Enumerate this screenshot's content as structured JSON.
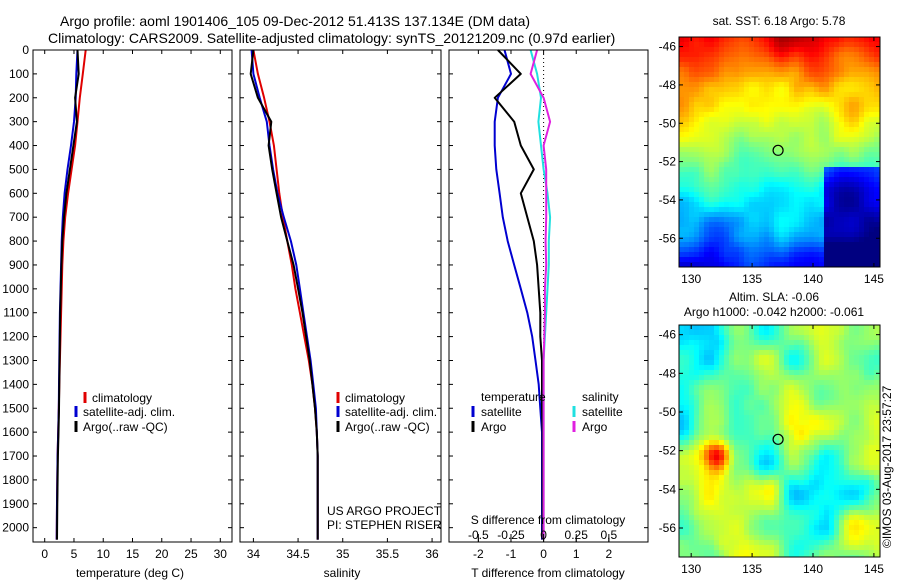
{
  "title": {
    "line1": "Argo profile: aoml 1901406_105 09-Dec-2012 51.413S 137.134E (DM data)",
    "line2": "Climatology: CARS2009. Satellite-adjusted climatology: synTS_20121209.nc (0.97d earlier)"
  },
  "colors": {
    "climatology": "#e00000",
    "satellite": "#0000d0",
    "argo": "#000000",
    "argo_salinity_diff": "#e020e0",
    "satellite_salinity_diff": "#20e0e0"
  },
  "footer": {
    "project": "US ARGO PROJECT",
    "pi": "PI: STEPHEN RISER",
    "timestamp": "©IMOS 03-Aug-2017 23:57:27"
  },
  "chart_data": [
    {
      "type": "line",
      "name": "temperature-profile",
      "xlabel": "temperature (deg C)",
      "ylabel": "",
      "xlim": [
        -2,
        32
      ],
      "ylim": [
        2060,
        0
      ],
      "x_ticks": [
        0,
        5,
        10,
        15,
        20,
        25,
        30
      ],
      "x_tick_labels": [
        "0",
        "5",
        "10",
        "15",
        "20",
        "25",
        "30"
      ],
      "y_ticks": [
        0,
        100,
        200,
        300,
        400,
        500,
        600,
        700,
        800,
        900,
        1000,
        1100,
        1200,
        1300,
        1400,
        1500,
        1600,
        1700,
        1800,
        1900,
        2000
      ],
      "y_tick_labels": [
        "0",
        "100",
        "200",
        "300",
        "400",
        "500",
        "600",
        "700",
        "800",
        "900",
        "1000",
        "1100",
        "1200",
        "1300",
        "1400",
        "1500",
        "1600",
        "1700",
        "1800",
        "1900",
        "2000"
      ],
      "legend": [
        "climatology",
        "satellite-adj. clim.",
        "Argo(..raw -QC)"
      ],
      "series": [
        {
          "name": "climatology",
          "color": "#e00000",
          "x": [
            7.0,
            6.5,
            6.0,
            5.6,
            5.2,
            4.6,
            4.0,
            3.5,
            3.2,
            3.0,
            2.9,
            2.8,
            2.7,
            2.6,
            2.5,
            2.4,
            2.3,
            2.2,
            2.15,
            2.1,
            2.05
          ],
          "y": [
            0,
            100,
            200,
            300,
            400,
            500,
            600,
            700,
            800,
            900,
            1000,
            1100,
            1200,
            1300,
            1400,
            1500,
            1600,
            1700,
            1800,
            1900,
            2050
          ]
        },
        {
          "name": "satellite-adj. clim.",
          "color": "#0000d0",
          "x": [
            5.6,
            5.4,
            5.3,
            5.0,
            4.5,
            3.9,
            3.4,
            3.1,
            2.9,
            2.8,
            2.7,
            2.6,
            2.55,
            2.5,
            2.45,
            2.4,
            2.3,
            2.2,
            2.15,
            2.1,
            2.05
          ],
          "y": [
            0,
            100,
            200,
            300,
            400,
            500,
            600,
            700,
            800,
            900,
            1000,
            1100,
            1200,
            1300,
            1400,
            1500,
            1600,
            1700,
            1800,
            1900,
            2050
          ]
        },
        {
          "name": "Argo",
          "color": "#000000",
          "x": [
            5.6,
            5.8,
            5.2,
            5.5,
            4.9,
            4.3,
            3.7,
            3.3,
            3.0,
            2.85,
            2.75,
            2.65,
            2.6,
            2.55,
            2.5,
            2.45,
            2.35,
            2.25,
            2.2,
            2.15,
            2.1
          ],
          "y": [
            0,
            100,
            200,
            300,
            400,
            500,
            600,
            700,
            800,
            900,
            1000,
            1100,
            1200,
            1300,
            1400,
            1500,
            1600,
            1700,
            1800,
            1900,
            2050
          ]
        }
      ]
    },
    {
      "type": "line",
      "name": "salinity-profile",
      "xlabel": "salinity",
      "xlim": [
        33.85,
        36.1
      ],
      "ylim": [
        2060,
        0
      ],
      "x_ticks": [
        34,
        34.5,
        35,
        35.5,
        36
      ],
      "x_tick_labels": [
        "34",
        "34.5",
        "35",
        "35.5",
        "36"
      ],
      "legend": [
        "climatology",
        "satellite-adj. clim.",
        "Argo(..raw -QC)"
      ],
      "series": [
        {
          "name": "climatology",
          "color": "#e00000",
          "x": [
            34.0,
            34.05,
            34.12,
            34.18,
            34.23,
            34.26,
            34.29,
            34.33,
            34.38,
            34.43,
            34.47,
            34.52,
            34.57,
            34.62,
            34.66,
            34.69,
            34.71,
            34.72,
            34.72,
            34.72,
            34.72
          ],
          "y": [
            0,
            100,
            200,
            300,
            400,
            500,
            600,
            700,
            800,
            900,
            1000,
            1100,
            1200,
            1300,
            1400,
            1500,
            1600,
            1700,
            1800,
            1900,
            2050
          ]
        },
        {
          "name": "satellite-adj. clim.",
          "color": "#0000d0",
          "x": [
            33.98,
            34.0,
            34.07,
            34.15,
            34.18,
            34.22,
            34.27,
            34.34,
            34.42,
            34.48,
            34.52,
            34.56,
            34.6,
            34.64,
            34.67,
            34.7,
            34.71,
            34.72,
            34.72,
            34.72,
            34.72
          ],
          "y": [
            0,
            100,
            200,
            300,
            400,
            500,
            600,
            700,
            800,
            900,
            1000,
            1100,
            1200,
            1300,
            1400,
            1500,
            1600,
            1700,
            1800,
            1900,
            2050
          ]
        },
        {
          "name": "Argo",
          "color": "#000000",
          "x": [
            34.0,
            33.97,
            34.05,
            34.2,
            34.17,
            34.21,
            34.26,
            34.31,
            34.38,
            34.45,
            34.5,
            34.55,
            34.59,
            34.63,
            34.66,
            34.69,
            34.71,
            34.72,
            34.72,
            34.72,
            34.72
          ],
          "y": [
            0,
            100,
            200,
            300,
            400,
            500,
            600,
            700,
            800,
            900,
            1000,
            1100,
            1200,
            1300,
            1400,
            1500,
            1600,
            1700,
            1800,
            1900,
            2050
          ]
        }
      ]
    },
    {
      "type": "line",
      "name": "difference-profile",
      "xlabel": "T difference from climatology",
      "xlabel_top": "S difference from climatology",
      "xlim": [
        -2.9,
        3.2
      ],
      "ylim": [
        2060,
        0
      ],
      "x_ticks": [
        -2,
        -1,
        0,
        1,
        2
      ],
      "x_tick_labels": [
        "-2",
        "-1",
        "0",
        "1",
        "2"
      ],
      "s_ticks": [
        -0.5,
        -0.25,
        0,
        0.25,
        0.5
      ],
      "s_tick_labels": [
        "-0.5",
        "-0.25",
        "0",
        "0.25",
        "0.5"
      ],
      "s_scale_note": "salinity diff axis: 0.25 = 1 deg C",
      "legend": {
        "temperature_heading": "temperature",
        "salinity_heading": "salinity",
        "temperature": [
          "satellite",
          "Argo"
        ],
        "salinity": [
          "satellite",
          "Argo"
        ]
      },
      "series": [
        {
          "name": "T satellite",
          "color": "#0000d0",
          "x": [
            -1.2,
            -1.0,
            -1.4,
            -1.5,
            -1.5,
            -1.45,
            -1.35,
            -1.25,
            -1.1,
            -0.9,
            -0.7,
            -0.5,
            -0.35,
            -0.25,
            -0.15,
            -0.1,
            -0.05,
            -0.05,
            -0.05,
            -0.05,
            -0.05
          ],
          "y": [
            0,
            100,
            200,
            300,
            400,
            500,
            600,
            700,
            800,
            900,
            1000,
            1100,
            1200,
            1300,
            1400,
            1500,
            1600,
            1700,
            1800,
            1900,
            2050
          ]
        },
        {
          "name": "T Argo",
          "color": "#000000",
          "x": [
            -1.4,
            -0.7,
            -1.5,
            -0.9,
            -0.7,
            -0.3,
            -0.7,
            -0.5,
            -0.3,
            -0.2,
            -0.15,
            -0.1,
            -0.1,
            -0.05,
            -0.05,
            -0.05,
            -0.03,
            -0.03,
            -0.03,
            -0.03,
            -0.03
          ],
          "y": [
            0,
            100,
            200,
            300,
            400,
            500,
            600,
            700,
            800,
            900,
            1000,
            1100,
            1200,
            1300,
            1400,
            1500,
            1600,
            1700,
            1800,
            1900,
            2050
          ]
        },
        {
          "name": "S satellite",
          "color": "#20e0e0",
          "x": [
            -0.1,
            -0.05,
            -0.02,
            -0.04,
            -0.02,
            0.0,
            0.03,
            0.05,
            0.04,
            0.04,
            0.03,
            0.02,
            0.01,
            0.0,
            0.0,
            0.0,
            0.0,
            0.0,
            0.0,
            0.0,
            0.0
          ],
          "y": [
            0,
            100,
            200,
            300,
            400,
            500,
            600,
            700,
            800,
            900,
            1000,
            1100,
            1200,
            1300,
            1400,
            1500,
            1600,
            1700,
            1800,
            1900,
            2050
          ]
        },
        {
          "name": "S Argo",
          "color": "#e020e0",
          "x": [
            -0.05,
            -0.1,
            0.0,
            0.05,
            0.0,
            0.02,
            0.02,
            0.02,
            0.015,
            0.02,
            0.01,
            0.01,
            0.005,
            0.0,
            0.0,
            0.0,
            0.0,
            0.0,
            0.0,
            0.0,
            0.0
          ],
          "y": [
            0,
            100,
            200,
            300,
            400,
            500,
            600,
            700,
            800,
            900,
            1000,
            1100,
            1200,
            1300,
            1400,
            1500,
            1600,
            1700,
            1800,
            1900,
            2050
          ]
        }
      ]
    },
    {
      "type": "heatmap",
      "name": "sst-map",
      "title": "sat. SST: 6.18 Argo: 5.78",
      "xlim": [
        129,
        145.5
      ],
      "ylim": [
        -57.5,
        -45.5
      ],
      "x_ticks": [
        130,
        135,
        140,
        145
      ],
      "x_tick_labels": [
        "130",
        "135",
        "140",
        "145"
      ],
      "y_ticks": [
        -46,
        -48,
        -50,
        -52,
        -54,
        -56
      ],
      "y_tick_labels": [
        "-46",
        "-48",
        "-50",
        "-52",
        "-54",
        "-56"
      ],
      "marker": {
        "lon": 137.134,
        "lat": -51.413
      },
      "colormap": "jet"
    },
    {
      "type": "heatmap",
      "name": "sla-map",
      "title": "Altim. SLA: -0.06",
      "subtitle": "Argo h1000: -0.042 h2000: -0.061",
      "xlim": [
        129,
        145.5
      ],
      "ylim": [
        -57.5,
        -45.5
      ],
      "x_ticks": [
        130,
        135,
        140,
        145
      ],
      "x_tick_labels": [
        "130",
        "135",
        "140",
        "145"
      ],
      "y_ticks": [
        -46,
        -48,
        -50,
        -52,
        -54,
        -56
      ],
      "y_tick_labels": [
        "-46",
        "-48",
        "-50",
        "-52",
        "-54",
        "-56"
      ],
      "marker": {
        "lon": 137.134,
        "lat": -51.413
      },
      "colormap": "jet"
    }
  ]
}
